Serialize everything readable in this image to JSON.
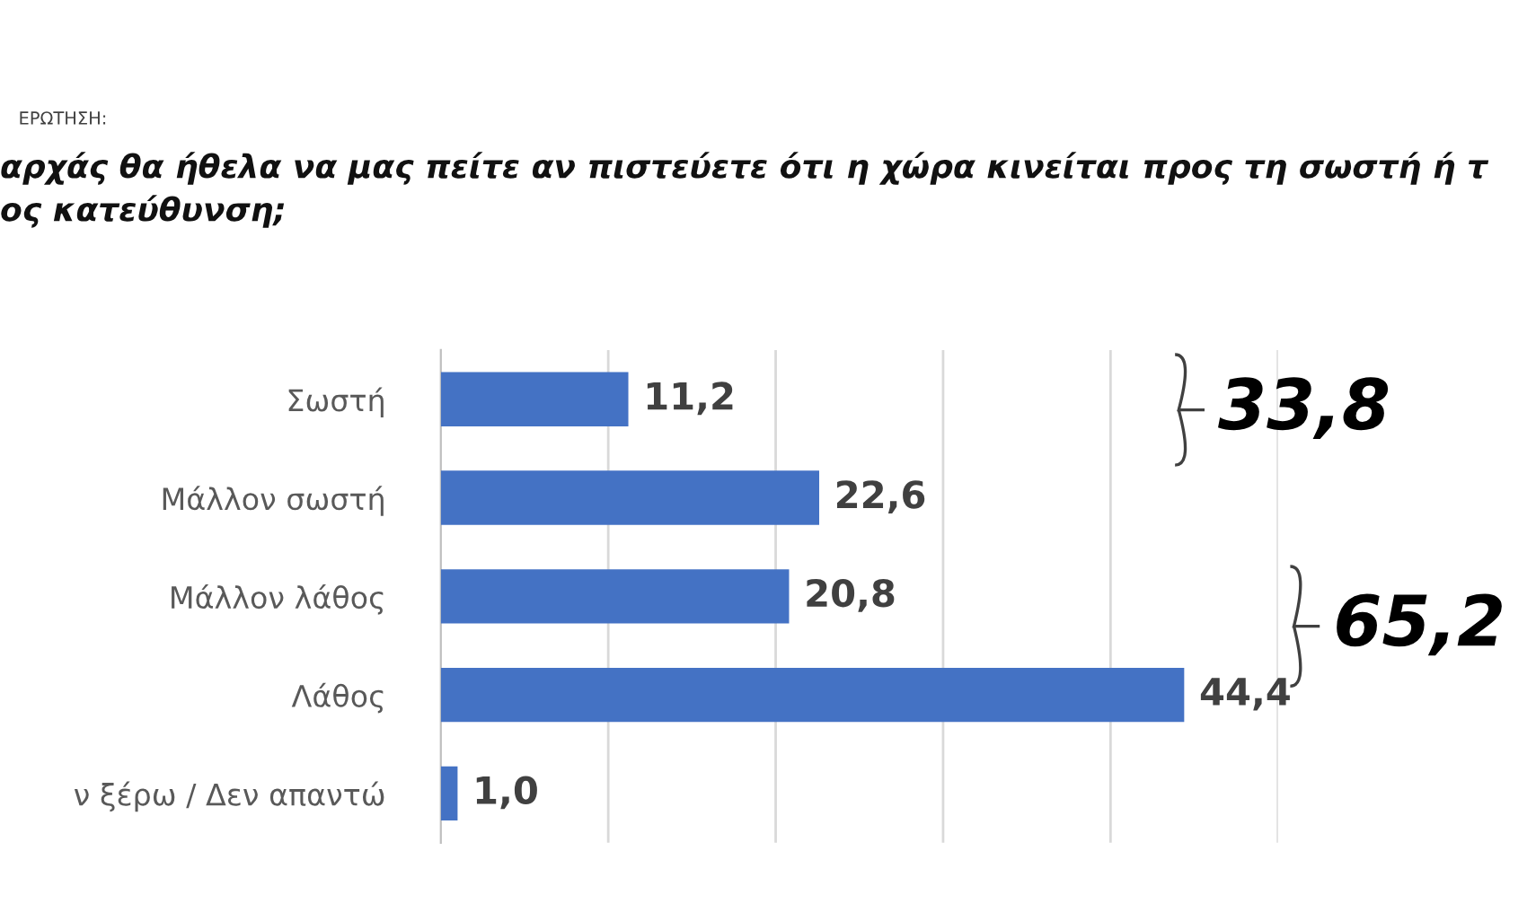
{
  "chart_data": {
    "type": "bar",
    "orientation": "horizontal",
    "title": "ΕΡΩΤΗΣΗ:",
    "subtitle": "αρχάς θα ήθελα να μας πείτε αν πιστεύετε ότι η χώρα κινείται προς τη σωστή ή τ\nος κατεύθυνση;",
    "categories": [
      "Σωστή",
      "Μάλλον σωστή",
      "Μάλλον λάθος",
      "Λάθος",
      "ν ξέρω / Δεν απαντώ"
    ],
    "values": [
      11.2,
      22.6,
      20.8,
      44.4,
      1.0
    ],
    "value_labels": [
      "11,2",
      "22,6",
      "20,8",
      "44,4",
      "1,0"
    ],
    "color": "#4472c4",
    "xticks": [
      {
        "value": 10,
        "label": null
      },
      {
        "value": 20,
        "label": null
      },
      {
        "value": 30,
        "label": null
      },
      {
        "value": 40,
        "label": null
      },
      {
        "value": 50,
        "label": null
      }
    ],
    "grid": "x",
    "annotations": [
      "33,8",
      "65,2"
    ]
  }
}
